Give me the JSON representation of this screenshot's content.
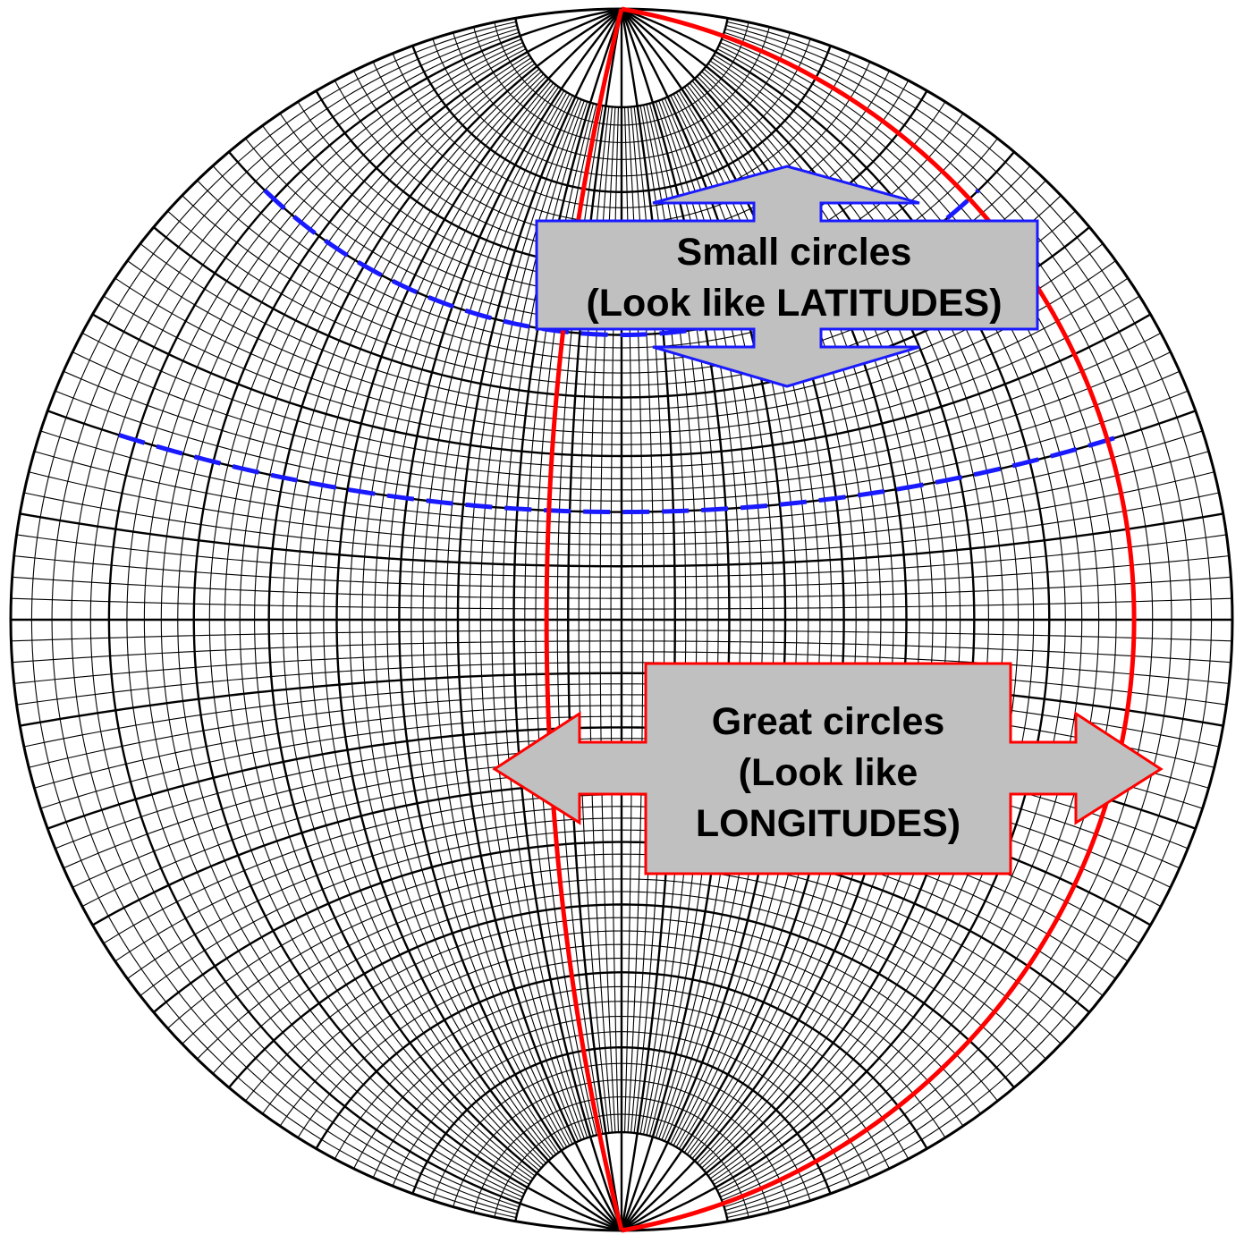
{
  "net": {
    "grid_step_deg": 2,
    "major_step_deg": 10,
    "grid_color": "#000000",
    "background": "#ffffff"
  },
  "small_circles": {
    "color": "#1a1aff",
    "label_line1": "Small circles",
    "label_line2": "(Look like LATITUDES)",
    "box_fill": "#c0c0c0",
    "latitudes_deg": [
      50,
      20
    ]
  },
  "great_circles": {
    "color": "#ff0000",
    "label_line1": "Great circles",
    "label_line2": "(Look like",
    "label_line3": "LONGITUDES)",
    "box_fill": "#c0c0c0",
    "longitudes_deg": [
      0,
      80
    ]
  }
}
